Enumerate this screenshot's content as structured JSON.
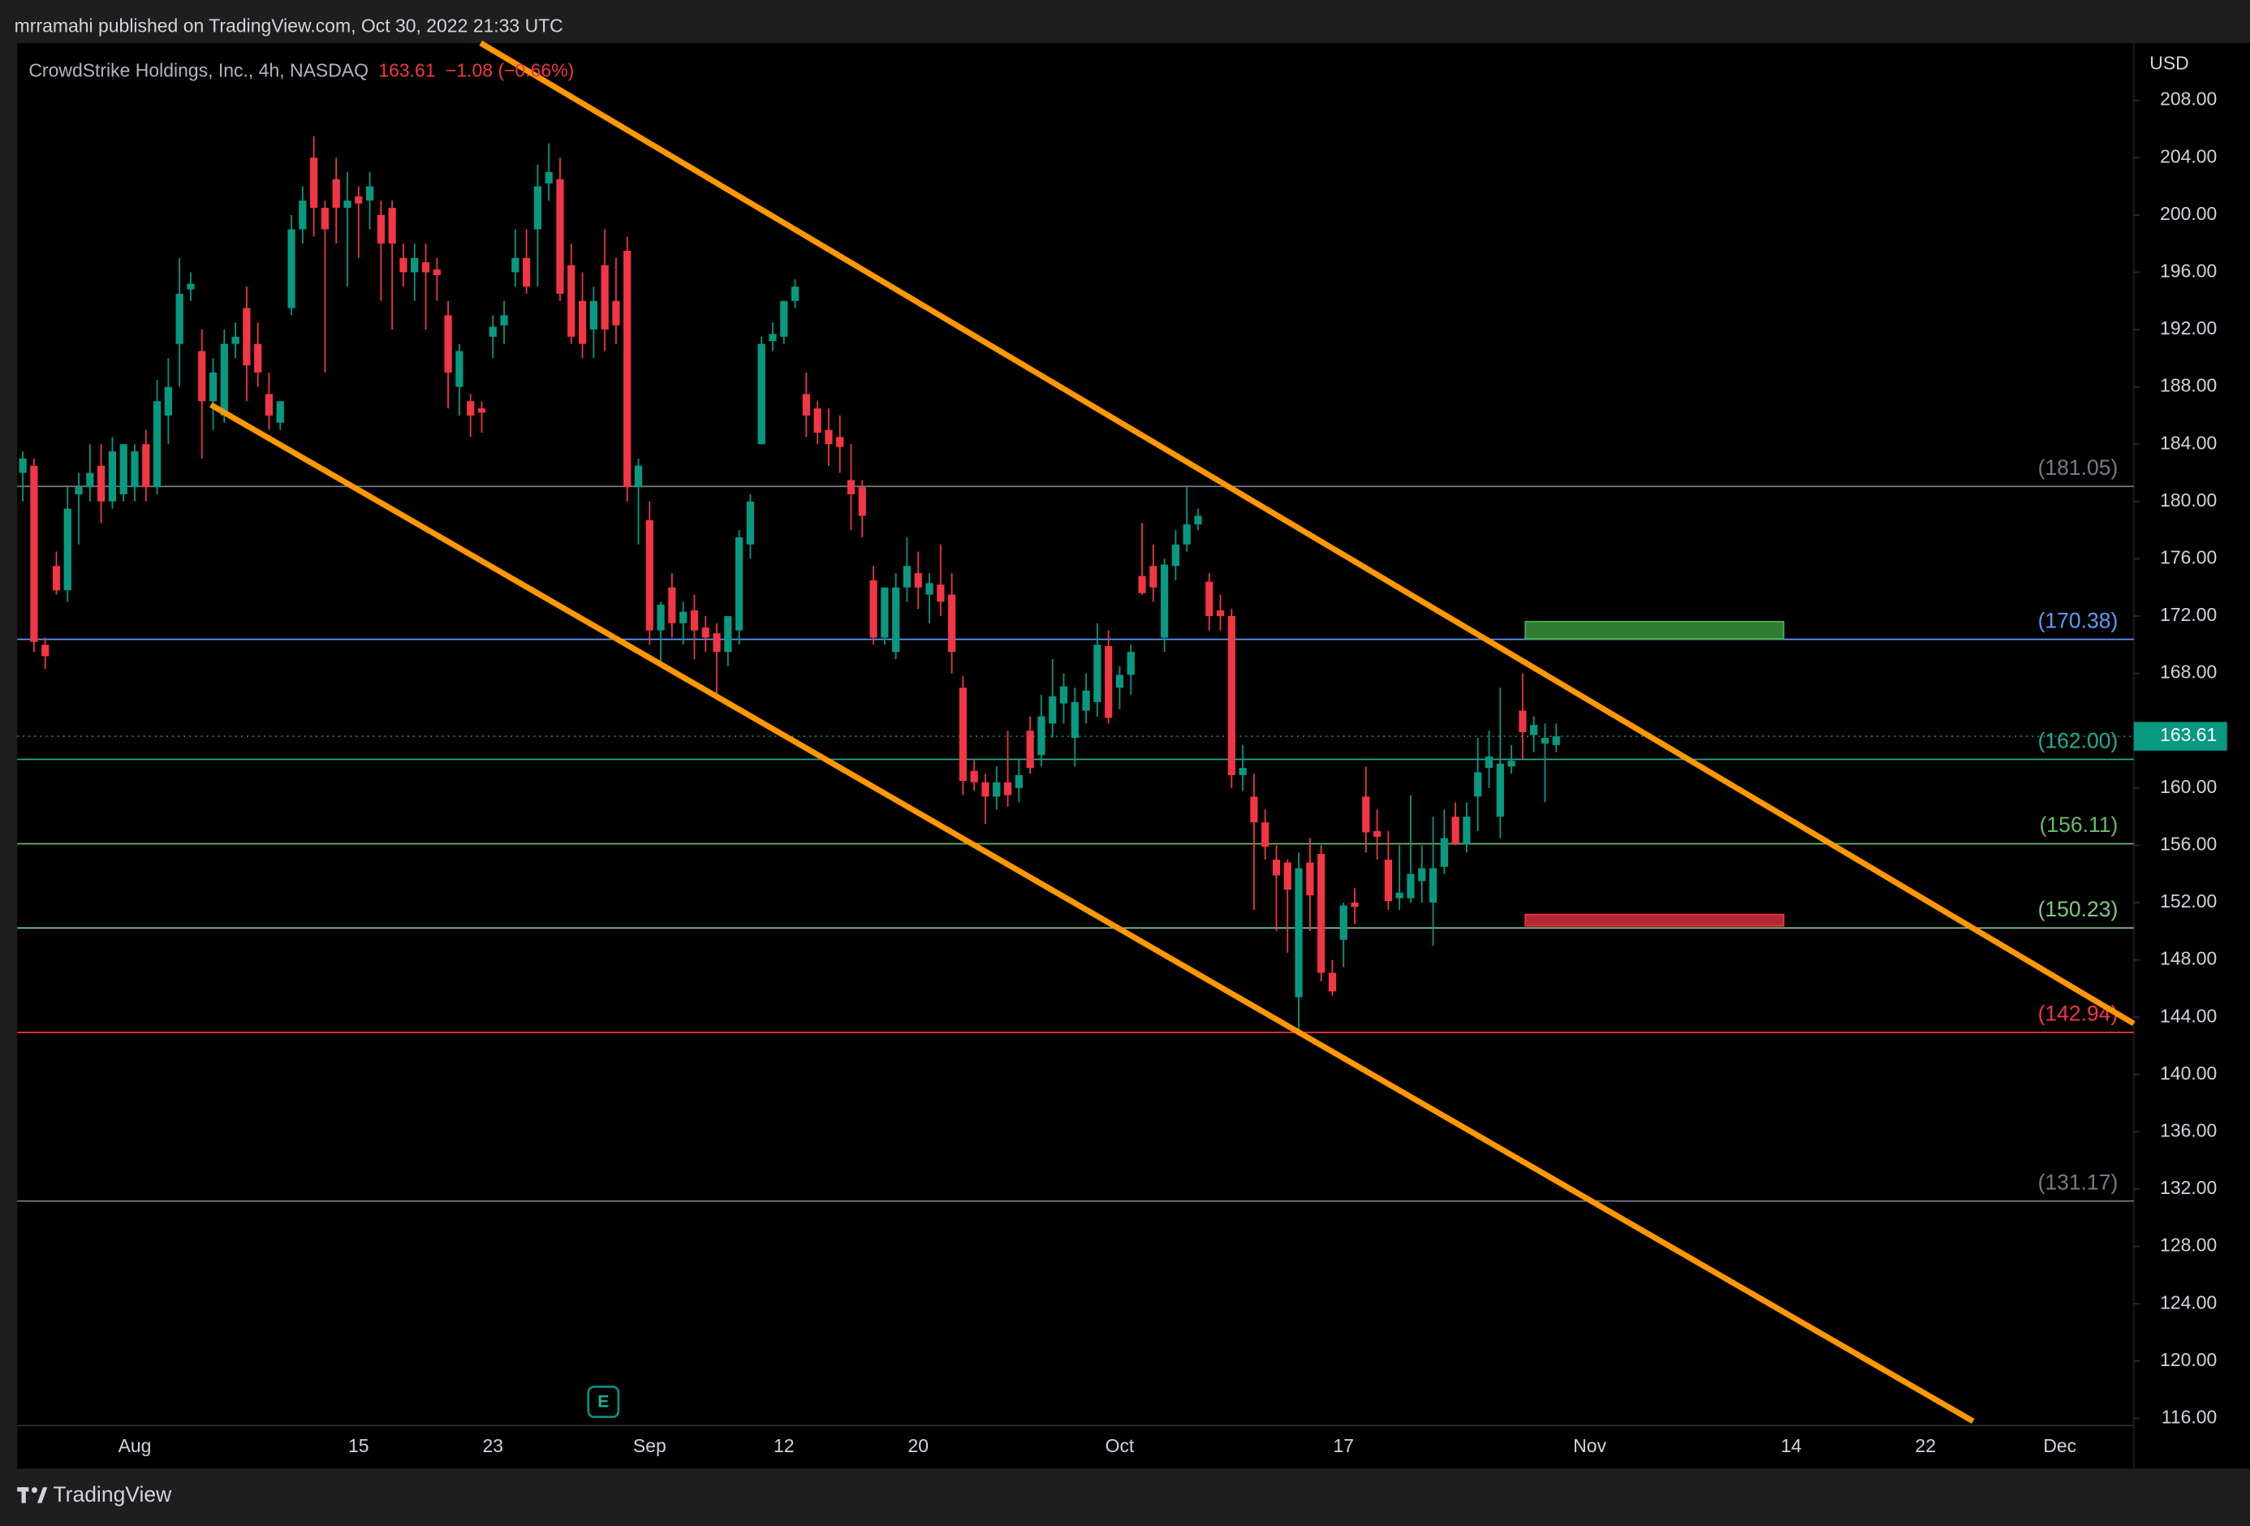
{
  "chart_data": {
    "type": "candlestick",
    "publisher": "mrramahi published on TradingView.com, Oct 30, 2022 21:33 UTC",
    "title": "CrowdStrike Holdings, Inc., 4h, NASDAQ",
    "last_price": 163.61,
    "change": "−1.08 (−0.66%)",
    "currency": "USD",
    "brand": "TradingView",
    "earnings_marker": "E",
    "up_color": "#089981",
    "down_color": "#f23645",
    "grid": false,
    "ylim": [
      115.5,
      212
    ],
    "yticks": [
      {
        "value": 208,
        "label": "208.00"
      },
      {
        "value": 204,
        "label": "204.00"
      },
      {
        "value": 200,
        "label": "200.00"
      },
      {
        "value": 196,
        "label": "196.00"
      },
      {
        "value": 192,
        "label": "192.00"
      },
      {
        "value": 188,
        "label": "188.00"
      },
      {
        "value": 184,
        "label": "184.00"
      },
      {
        "value": 180,
        "label": "180.00"
      },
      {
        "value": 176,
        "label": "176.00"
      },
      {
        "value": 172,
        "label": "172.00"
      },
      {
        "value": 168,
        "label": "168.00"
      },
      {
        "value": 164,
        "label": "164.00"
      },
      {
        "value": 160,
        "label": "160.00"
      },
      {
        "value": 156,
        "label": "156.00"
      },
      {
        "value": 152,
        "label": "152.00"
      },
      {
        "value": 148,
        "label": "148.00"
      },
      {
        "value": 144,
        "label": "144.00"
      },
      {
        "value": 140,
        "label": "140.00"
      },
      {
        "value": 136,
        "label": "136.00"
      },
      {
        "value": 132,
        "label": "132.00"
      },
      {
        "value": 128,
        "label": "128.00"
      },
      {
        "value": 124,
        "label": "124.00"
      },
      {
        "value": 120,
        "label": "120.00"
      },
      {
        "value": 116,
        "label": "116.00"
      }
    ],
    "levels": [
      {
        "value": 181.05,
        "label": "(181.05)",
        "color": "#787b86"
      },
      {
        "value": 170.38,
        "label": "(170.38)",
        "color": "#5b9cf6"
      },
      {
        "value": 162.0,
        "label": "(162.00)",
        "color": "#22ab94"
      },
      {
        "value": 156.11,
        "label": "(156.11)",
        "color": "#66bb6a"
      },
      {
        "value": 150.23,
        "label": "(150.23)",
        "color": "#81c784"
      },
      {
        "value": 142.94,
        "label": "(142.94)",
        "color": "#f23645"
      },
      {
        "value": 131.17,
        "label": "(131.17)",
        "color": "#787b86"
      }
    ],
    "categories": [
      null,
      null,
      null,
      null,
      null,
      null,
      null,
      null,
      null,
      null,
      "Aug",
      null,
      null,
      null,
      null,
      null,
      null,
      null,
      null,
      null,
      null,
      null,
      null,
      null,
      null,
      null,
      null,
      null,
      null,
      null,
      "15",
      null,
      null,
      null,
      null,
      null,
      null,
      null,
      null,
      null,
      null,
      null,
      "23",
      null,
      null,
      null,
      null,
      null,
      null,
      null,
      null,
      null,
      null,
      null,
      null,
      null,
      "Sep",
      null,
      null,
      null,
      null,
      null,
      null,
      null,
      null,
      null,
      null,
      null,
      "12",
      null,
      null,
      null,
      null,
      null,
      null,
      null,
      null,
      null,
      null,
      null,
      "20",
      null,
      null,
      null,
      null,
      null,
      null,
      null,
      null,
      null,
      null,
      null,
      null,
      null,
      null,
      null,
      null,
      null,
      "Oct",
      null,
      null,
      null,
      null,
      null,
      null,
      null,
      null,
      null,
      null,
      null,
      null,
      null,
      null,
      null,
      null,
      null,
      null,
      null,
      "17",
      null,
      null,
      null,
      null,
      null,
      null,
      null,
      null,
      null,
      null,
      null,
      null,
      null,
      null,
      null,
      null,
      null,
      null,
      null,
      null,
      null,
      "Nov",
      null,
      null,
      null,
      null,
      null,
      null,
      null,
      null,
      null,
      null,
      null,
      null,
      null,
      null,
      null,
      null,
      null,
      "14",
      null,
      null,
      null,
      null,
      null,
      null,
      null,
      null,
      null,
      null,
      null,
      "22",
      null,
      null,
      null,
      null,
      null,
      null,
      null,
      null,
      null,
      null,
      null,
      "Dec",
      null,
      null,
      null,
      null,
      null,
      null
    ],
    "open": [
      182.0,
      182.5,
      170.0,
      175.5,
      173.8,
      180.5,
      181.0,
      182.5,
      180.0,
      180.5,
      181.0,
      184.0,
      181.0,
      186.0,
      191.0,
      194.8,
      190.5,
      187.0,
      186.0,
      191.0,
      193.5,
      191.0,
      187.5,
      185.5,
      193.5,
      199.0,
      204.0,
      200.5,
      202.5,
      200.5,
      201.3,
      201.0,
      200.0,
      200.5,
      197.0,
      196.0,
      196.7,
      196.2,
      193.0,
      188.0,
      187.0,
      186.5,
      191.5,
      192.3,
      196.0,
      197.0,
      199.0,
      202.2,
      202.5,
      196.5,
      194.0,
      192.0,
      196.5,
      194.0,
      197.5,
      181.0,
      178.7,
      171.0,
      174.0,
      171.5,
      172.4,
      171.2,
      170.8,
      169.5,
      171.0,
      177.0,
      184.0,
      191.2,
      191.5,
      194.0,
      187.5,
      186.5,
      185.0,
      184.5,
      181.5,
      181.0,
      174.5,
      170.5,
      169.5,
      174.0,
      175.0,
      173.5,
      174.2,
      173.5,
      167.0,
      161.2,
      160.4,
      159.4,
      160.4,
      160.0,
      164.0,
      162.3,
      164.5,
      165.9,
      163.5,
      165.4,
      166.0,
      169.9,
      167.0,
      167.9,
      174.8,
      175.5,
      170.5,
      175.5,
      177.0,
      178.4,
      174.4,
      172.4,
      172.0,
      160.9,
      159.4,
      157.6,
      155.0,
      154.8,
      145.4,
      154.8,
      155.4,
      147.1,
      149.4,
      152.0,
      159.4,
      157.0,
      155.0,
      152.3,
      152.3,
      153.5,
      152.0,
      154.5,
      158.0,
      156.1,
      159.4,
      161.4,
      158.0,
      161.5,
      165.4,
      163.7,
      163.1,
      163.0,
      null,
      null,
      null,
      null,
      null,
      null,
      null,
      null,
      null,
      null,
      null,
      null,
      null,
      null,
      null,
      null,
      null,
      null,
      null,
      null,
      null,
      null,
      null,
      null,
      null,
      null,
      null,
      null,
      null,
      null,
      null,
      null,
      null,
      null,
      null,
      null,
      null,
      null,
      null,
      null,
      null,
      null,
      null,
      null,
      null,
      null,
      null,
      null,
      null,
      null,
      null
    ],
    "high": [
      183.5,
      183.0,
      170.5,
      176.5,
      181.0,
      182.0,
      184.0,
      184.0,
      184.5,
      184.0,
      184.0,
      185.0,
      188.5,
      190.0,
      197.0,
      196.0,
      192.0,
      190.0,
      192.0,
      192.5,
      195.0,
      192.5,
      189.0,
      187.0,
      200.0,
      202.0,
      205.5,
      201.0,
      204.0,
      203.0,
      202.0,
      203.0,
      201.0,
      201.0,
      198.0,
      198.0,
      198.0,
      197.0,
      194.0,
      191.0,
      187.5,
      187.0,
      193.0,
      194.0,
      199.0,
      199.0,
      203.5,
      205.0,
      204.0,
      198.0,
      196.0,
      195.0,
      199.0,
      197.0,
      198.5,
      183.0,
      180.0,
      173.0,
      175.0,
      173.0,
      173.5,
      172.0,
      171.5,
      172.0,
      178.0,
      180.5,
      191.5,
      192.5,
      194.0,
      195.5,
      189.0,
      187.0,
      186.5,
      186.0,
      184.0,
      181.5,
      175.5,
      174.0,
      175.0,
      177.5,
      176.5,
      175.0,
      177.0,
      175.0,
      167.8,
      162.0,
      161.0,
      161.5,
      164.0,
      162.0,
      165.0,
      166.5,
      169.0,
      168.0,
      167.0,
      168.0,
      171.5,
      171.0,
      168.5,
      170.0,
      178.5,
      177.0,
      176.0,
      178.0,
      181.0,
      179.5,
      175.0,
      173.5,
      172.5,
      163.0,
      161.0,
      158.5,
      156.0,
      155.0,
      155.5,
      156.5,
      156.0,
      148.0,
      152.0,
      153.0,
      161.5,
      158.5,
      157.0,
      156.0,
      159.5,
      156.0,
      158.0,
      158.5,
      159.0,
      159.0,
      163.5,
      164.0,
      167.0,
      163.0,
      168.0,
      165.0,
      164.5,
      164.5,
      null,
      null,
      null,
      null,
      null,
      null,
      null,
      null,
      null,
      null,
      null,
      null,
      null,
      null,
      null,
      null,
      null,
      null,
      null,
      null,
      null,
      null,
      null,
      null,
      null,
      null,
      null,
      null,
      null,
      null,
      null,
      null,
      null,
      null,
      null,
      null,
      null,
      null,
      null,
      null,
      null,
      null,
      null,
      null,
      null,
      null,
      null,
      null,
      null,
      null,
      null
    ],
    "low": [
      180.0,
      169.5,
      168.3,
      173.5,
      173.0,
      177.0,
      180.0,
      178.5,
      179.5,
      180.0,
      180.0,
      180.0,
      180.5,
      184.0,
      188.0,
      194.0,
      183.0,
      185.0,
      185.5,
      190.0,
      187.0,
      188.0,
      185.0,
      185.0,
      193.0,
      198.0,
      198.5,
      189.0,
      198.0,
      195.0,
      197.0,
      199.0,
      194.0,
      192.0,
      195.0,
      194.0,
      192.0,
      194.0,
      186.5,
      186.0,
      184.5,
      184.8,
      190.0,
      191.0,
      195.0,
      194.5,
      195.0,
      201.0,
      194.0,
      191.0,
      190.0,
      190.0,
      190.5,
      191.0,
      180.0,
      177.0,
      170.0,
      168.5,
      170.5,
      170.0,
      169.0,
      169.5,
      166.5,
      168.5,
      170.0,
      176.0,
      184.0,
      190.5,
      191.0,
      193.5,
      184.5,
      184.0,
      182.5,
      182.0,
      178.0,
      177.5,
      170.0,
      170.0,
      169.0,
      173.0,
      172.5,
      171.5,
      172.0,
      168.0,
      159.5,
      159.8,
      157.5,
      158.5,
      158.7,
      159.0,
      161.0,
      161.5,
      163.5,
      164.5,
      161.5,
      164.5,
      165.0,
      164.5,
      165.5,
      166.5,
      173.5,
      173.0,
      169.5,
      174.5,
      176.5,
      178.0,
      171.0,
      171.0,
      160.0,
      159.8,
      151.5,
      155.0,
      150.0,
      148.5,
      142.9,
      150.0,
      146.5,
      145.5,
      147.5,
      150.5,
      155.5,
      155.0,
      151.5,
      151.5,
      152.0,
      152.0,
      149.0,
      154.0,
      156.0,
      155.5,
      157.0,
      160.0,
      156.5,
      161.0,
      162.0,
      162.5,
      159.0,
      162.5,
      null,
      null,
      null,
      null,
      null,
      null,
      null,
      null,
      null,
      null,
      null,
      null,
      null,
      null,
      null,
      null,
      null,
      null,
      null,
      null,
      null,
      null,
      null,
      null,
      null,
      null,
      null,
      null,
      null,
      null,
      null,
      null,
      null,
      null,
      null,
      null,
      null,
      null,
      null,
      null,
      null,
      null,
      null,
      null,
      null,
      null,
      null,
      null,
      null,
      null,
      null
    ],
    "close": [
      183.0,
      170.2,
      169.2,
      173.8,
      179.5,
      181.0,
      182.0,
      180.0,
      183.5,
      184.0,
      183.5,
      181.0,
      187.0,
      188.0,
      194.5,
      195.2,
      187.0,
      189.0,
      191.0,
      191.5,
      189.5,
      189.0,
      186.0,
      187.0,
      199.0,
      201.0,
      200.5,
      199.0,
      200.5,
      201.0,
      200.8,
      202.0,
      198.0,
      198.0,
      196.0,
      197.0,
      196.0,
      195.8,
      189.0,
      190.5,
      186.0,
      186.2,
      192.2,
      193.0,
      197.0,
      195.0,
      202.0,
      203.0,
      194.5,
      191.5,
      191.0,
      194.0,
      192.0,
      192.3,
      181.0,
      182.5,
      171.0,
      172.8,
      171.5,
      172.3,
      171.0,
      170.5,
      169.5,
      172.0,
      177.5,
      180.0,
      191.0,
      191.7,
      194.0,
      195.0,
      186.0,
      184.8,
      184.0,
      183.8,
      180.5,
      179.0,
      170.5,
      174.0,
      174.0,
      175.5,
      174.0,
      174.3,
      173.0,
      169.5,
      160.5,
      160.4,
      159.4,
      160.4,
      159.5,
      160.9,
      161.4,
      165.0,
      166.4,
      167.1,
      166.0,
      166.8,
      170.0,
      164.9,
      167.9,
      169.5,
      173.6,
      174.0,
      175.6,
      177.0,
      178.4,
      179.0,
      172.0,
      172.0,
      160.9,
      161.4,
      157.6,
      155.9,
      153.9,
      152.9,
      154.4,
      152.5,
      147.1,
      145.8,
      151.8,
      151.7,
      156.9,
      156.6,
      152.1,
      152.7,
      154.0,
      154.4,
      154.4,
      156.5,
      156.1,
      158.0,
      161.1,
      162.2,
      161.7,
      161.9,
      163.9,
      164.4,
      163.5,
      163.61,
      null,
      null,
      null,
      null,
      null,
      null,
      null,
      null,
      null,
      null,
      null,
      null,
      null,
      null,
      null,
      null,
      null,
      null,
      null,
      null,
      null,
      null,
      null,
      null,
      null,
      null,
      null,
      null,
      null,
      null,
      null,
      null,
      null,
      null,
      null,
      null,
      null,
      null,
      null,
      null,
      null,
      null,
      null,
      null,
      null,
      null,
      null,
      null,
      null,
      null,
      null
    ]
  }
}
